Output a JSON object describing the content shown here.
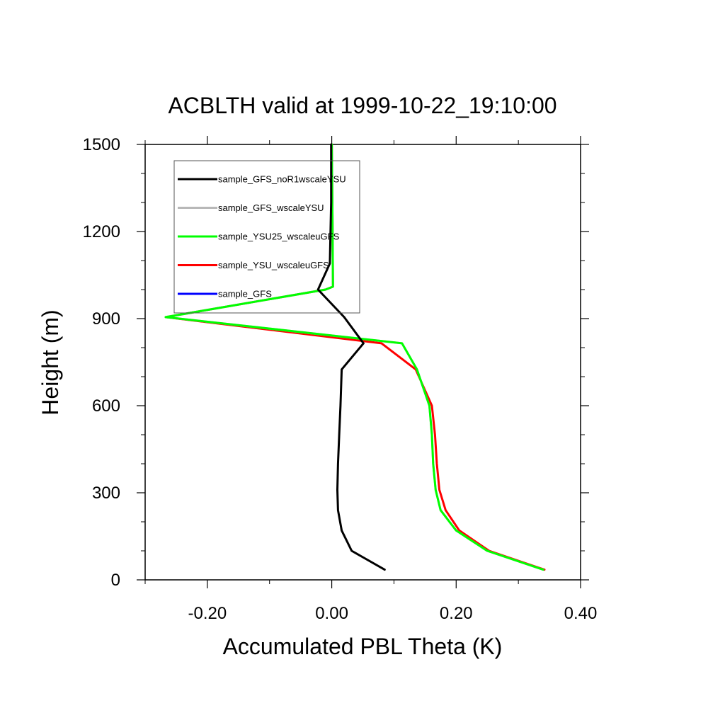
{
  "chart_data": {
    "type": "line",
    "title": "ACBLTH valid at 1999-10-22_19:10:00",
    "xlabel": "Accumulated PBL Theta (K)",
    "ylabel": "Height (m)",
    "xlim": [
      -0.3,
      0.4
    ],
    "ylim": [
      0,
      1500
    ],
    "x_tick_labels": [
      "-0.20",
      "0.00",
      "0.20",
      "0.40"
    ],
    "x_tick_values": [
      -0.2,
      0.0,
      0.2,
      0.4
    ],
    "y_tick_labels": [
      "0",
      "300",
      "600",
      "900",
      "1200",
      "1500"
    ],
    "y_tick_values": [
      0,
      300,
      600,
      900,
      1200,
      1500
    ],
    "grid": false,
    "legend_position": "top-left",
    "series": [
      {
        "name": "sample_GFS_noR1wscaleYSU",
        "color": "#000000",
        "points": [
          [
            0.085,
            35
          ],
          [
            0.032,
            100
          ],
          [
            0.016,
            170
          ],
          [
            0.01,
            240
          ],
          [
            0.009,
            310
          ],
          [
            0.01,
            400
          ],
          [
            0.012,
            500
          ],
          [
            0.014,
            600
          ],
          [
            0.016,
            725
          ],
          [
            0.051,
            815
          ],
          [
            0.02,
            905
          ],
          [
            -0.022,
            1000
          ],
          [
            -0.003,
            1090
          ],
          [
            -0.001,
            1300
          ],
          [
            -0.001,
            1500
          ]
        ]
      },
      {
        "name": "sample_GFS_wscaleYSU",
        "color": "#b8b8b8",
        "points": [
          [
            0.34,
            35
          ],
          [
            0.25,
            100
          ],
          [
            0.2,
            170
          ],
          [
            0.175,
            240
          ],
          [
            0.167,
            310
          ],
          [
            0.163,
            400
          ],
          [
            0.161,
            500
          ],
          [
            0.157,
            600
          ],
          [
            0.137,
            725
          ],
          [
            0.113,
            815
          ],
          [
            -0.267,
            905
          ],
          [
            -0.01,
            1000
          ],
          [
            0.002,
            1010
          ],
          [
            0.001,
            1300
          ],
          [
            0.0,
            1500
          ]
        ]
      },
      {
        "name": "sample_YSU25_wscaleuGFS",
        "color": "#00ff00",
        "points": [
          [
            0.34,
            35
          ],
          [
            0.25,
            100
          ],
          [
            0.2,
            170
          ],
          [
            0.175,
            240
          ],
          [
            0.167,
            310
          ],
          [
            0.163,
            400
          ],
          [
            0.161,
            500
          ],
          [
            0.157,
            600
          ],
          [
            0.137,
            725
          ],
          [
            0.113,
            815
          ],
          [
            -0.267,
            905
          ],
          [
            -0.01,
            1000
          ],
          [
            0.002,
            1010
          ],
          [
            0.001,
            1300
          ],
          [
            0.0,
            1500
          ]
        ]
      },
      {
        "name": "sample_YSU_wscaleuGFS",
        "color": "#ff0000",
        "points": [
          [
            0.342,
            35
          ],
          [
            0.253,
            100
          ],
          [
            0.205,
            170
          ],
          [
            0.183,
            240
          ],
          [
            0.173,
            310
          ],
          [
            0.169,
            400
          ],
          [
            0.166,
            500
          ],
          [
            0.161,
            600
          ],
          [
            0.135,
            725
          ],
          [
            0.08,
            815
          ],
          [
            -0.267,
            905
          ],
          [
            -0.01,
            1000
          ],
          [
            0.002,
            1010
          ],
          [
            0.001,
            1300
          ],
          [
            0.0,
            1500
          ]
        ]
      },
      {
        "name": "sample_GFS",
        "color": "#0000ff",
        "points": []
      }
    ]
  }
}
